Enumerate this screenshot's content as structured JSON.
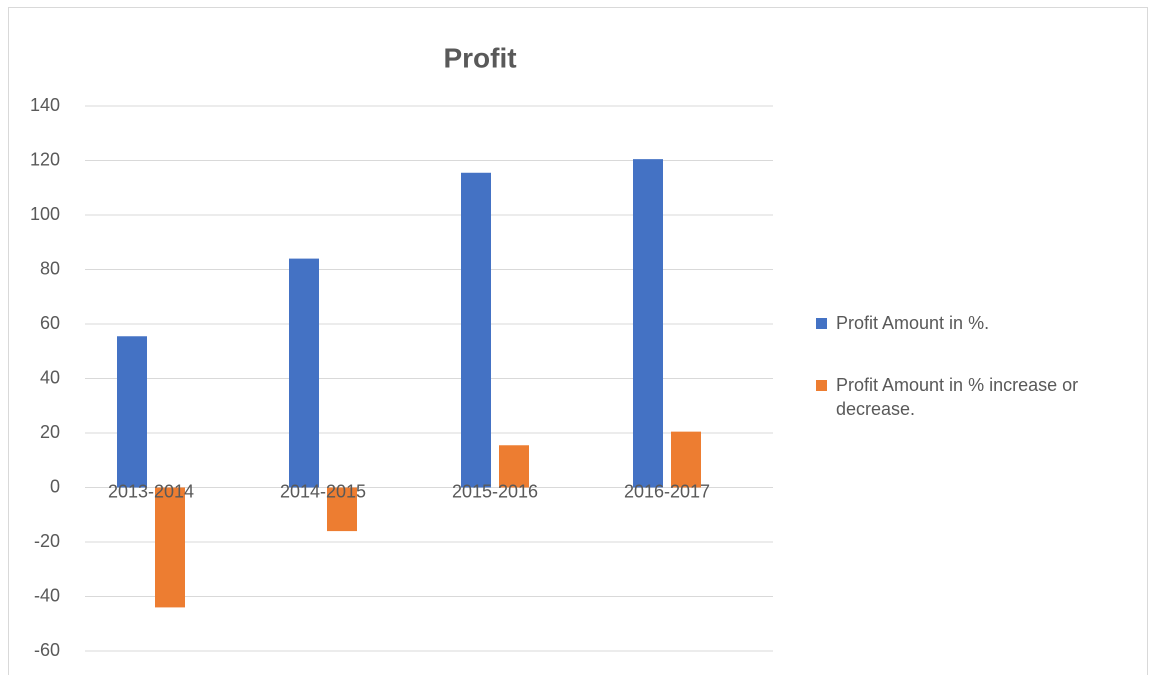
{
  "chart_data": {
    "type": "bar",
    "title": "Profit",
    "categories": [
      "2013-2014",
      "2014-2015",
      "2015-2016",
      "2016-2017"
    ],
    "series": [
      {
        "name": "Profit Amount in %.",
        "color": "#4472c4",
        "values": [
          55.5,
          84,
          115.5,
          120.5
        ]
      },
      {
        "name": "Profit Amount in % increase or decrease.",
        "color": "#ed7d31",
        "values": [
          -44,
          -16,
          15.5,
          20.5
        ]
      }
    ],
    "ylim": [
      -60,
      140
    ],
    "yticks": [
      -60,
      -40,
      -20,
      0,
      20,
      40,
      60,
      80,
      100,
      120,
      140
    ],
    "grid": true,
    "legend": "right"
  }
}
